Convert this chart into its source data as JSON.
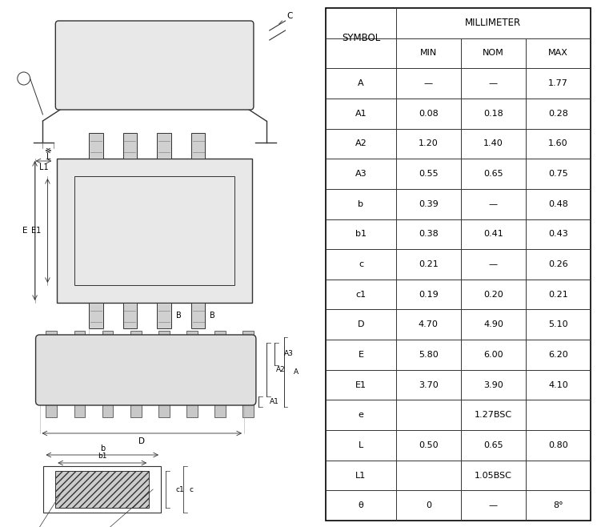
{
  "table_data": [
    [
      "SYMBOL",
      "MIN",
      "NOM",
      "MAX"
    ],
    [
      "A",
      "—",
      "—",
      "1.77"
    ],
    [
      "A1",
      "0.08",
      "0.18",
      "0.28"
    ],
    [
      "A2",
      "1.20",
      "1.40",
      "1.60"
    ],
    [
      "A3",
      "0.55",
      "0.65",
      "0.75"
    ],
    [
      "b",
      "0.39",
      "—",
      "0.48"
    ],
    [
      "b1",
      "0.38",
      "0.41",
      "0.43"
    ],
    [
      "c",
      "0.21",
      "—",
      "0.26"
    ],
    [
      "c1",
      "0.19",
      "0.20",
      "0.21"
    ],
    [
      "D",
      "4.70",
      "4.90",
      "5.10"
    ],
    [
      "E",
      "5.80",
      "6.00",
      "6.20"
    ],
    [
      "E1",
      "3.70",
      "3.90",
      "4.10"
    ],
    [
      "e",
      "1.27BSC",
      "",
      ""
    ],
    [
      "L",
      "0.50",
      "0.65",
      "0.80"
    ],
    [
      "L1",
      "1.05BSC",
      "",
      ""
    ],
    [
      "θ",
      "0",
      "—",
      "8°"
    ]
  ],
  "bg_color": "#ffffff",
  "line_color": "#000000",
  "text_color": "#000000"
}
